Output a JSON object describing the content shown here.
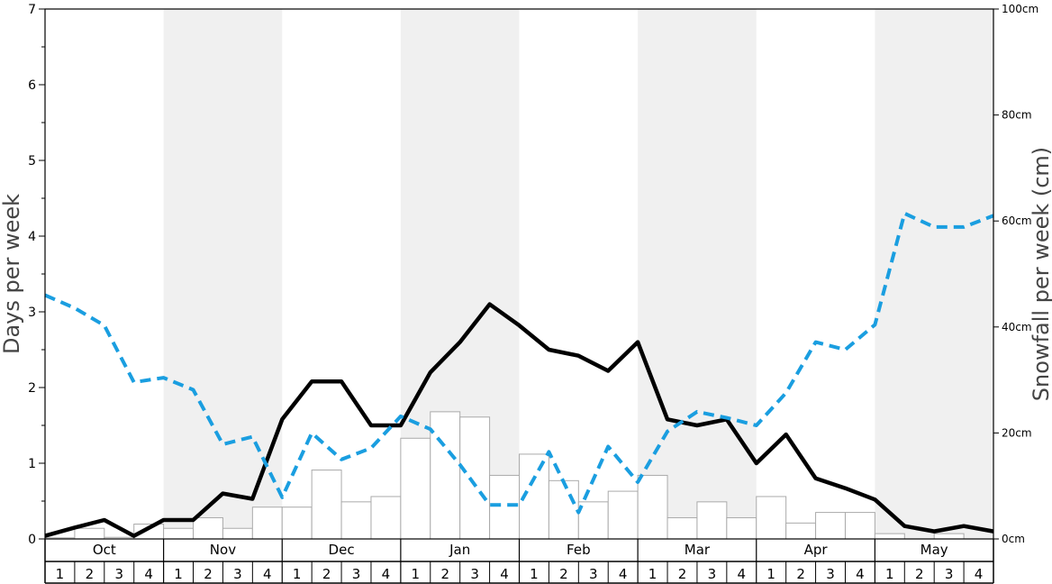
{
  "chart_data": {
    "type": "bar+line",
    "months": [
      "Oct",
      "Nov",
      "Dec",
      "Jan",
      "Feb",
      "Mar",
      "Apr",
      "May"
    ],
    "weeks_per_month": [
      "1",
      "2",
      "3",
      "4"
    ],
    "shaded_months": [
      false,
      true,
      false,
      true,
      false,
      true,
      false,
      true
    ],
    "ylabel_left": "Days per week",
    "ylabel_right": "Snowfall per week (cm)",
    "ylim_left": [
      0,
      7
    ],
    "ylim_right": [
      0,
      100
    ],
    "left_ticks": [
      "0",
      "1",
      "2",
      "3",
      "4",
      "5",
      "6",
      "7"
    ],
    "right_ticks": [
      "0cm",
      "20cm",
      "40cm",
      "60cm",
      "80cm",
      "100cm"
    ],
    "series": [
      {
        "kind": "bar",
        "axis": "right",
        "unit": "cm",
        "values": [
          0.2,
          2.0,
          0.3,
          2.8,
          2.0,
          4.0,
          2.0,
          6.0,
          6.0,
          13.0,
          7.0,
          8.0,
          19.0,
          24.0,
          23.0,
          12.0,
          16.0,
          11.0,
          7.0,
          9.0,
          12.0,
          4.0,
          7.0,
          4.0,
          8.0,
          3.0,
          5.0,
          5.0,
          1.0,
          0.0,
          1.0,
          0.0
        ]
      },
      {
        "kind": "line",
        "style": "solid",
        "axis": "left",
        "color": "#000000",
        "values": [
          0.04,
          0.15,
          0.25,
          0.04,
          0.25,
          0.25,
          0.6,
          0.53,
          1.58,
          2.08,
          2.08,
          1.5,
          1.5,
          2.2,
          2.6,
          3.1,
          2.82,
          2.5,
          2.42,
          2.22,
          2.6,
          1.58,
          1.5,
          1.58,
          1.0,
          1.38,
          0.8,
          0.67,
          0.52,
          0.17,
          0.1,
          0.17,
          0.1
        ]
      },
      {
        "kind": "line",
        "style": "dashed",
        "axis": "left",
        "color": "#1a9ee0",
        "values": [
          3.22,
          3.05,
          2.82,
          2.07,
          2.13,
          1.97,
          1.25,
          1.35,
          0.55,
          1.4,
          1.05,
          1.2,
          1.62,
          1.45,
          0.98,
          0.45,
          0.45,
          1.15,
          0.35,
          1.22,
          0.75,
          1.42,
          1.68,
          1.6,
          1.5,
          1.93,
          2.6,
          2.5,
          2.83,
          4.3,
          4.12,
          4.12,
          4.27
        ]
      }
    ]
  }
}
